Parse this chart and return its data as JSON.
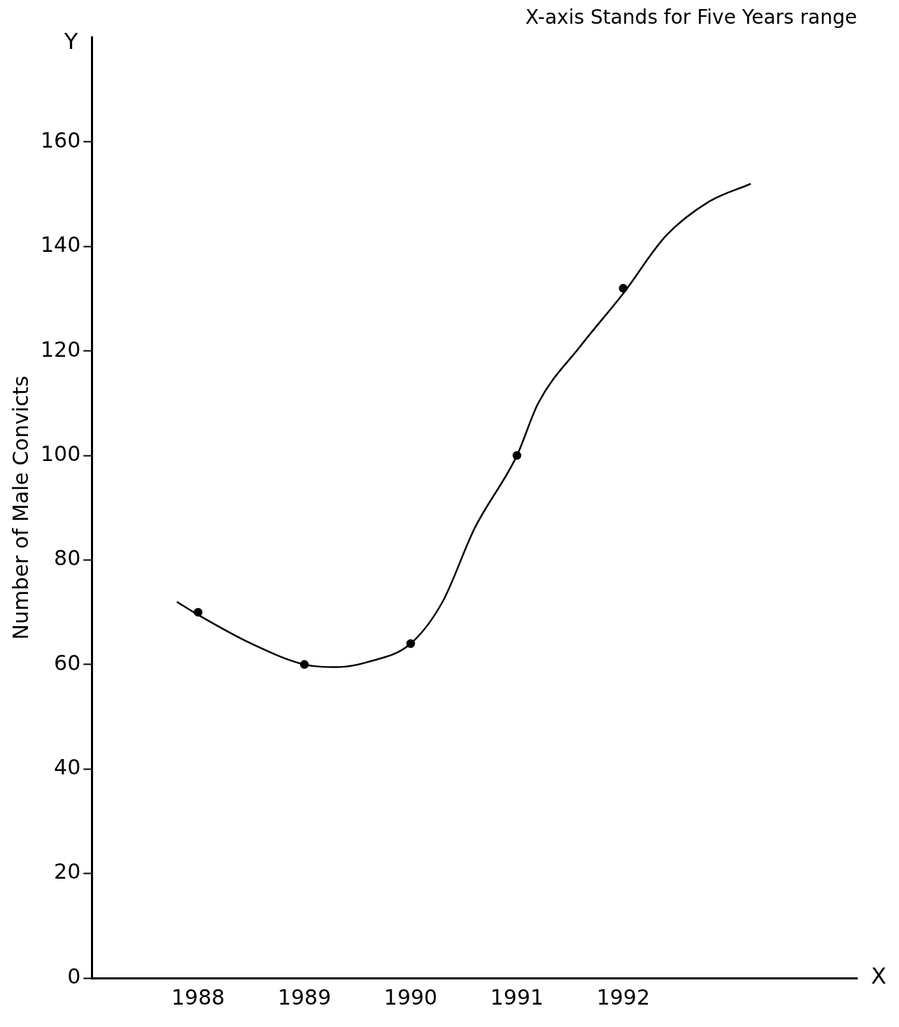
{
  "chart_data": {
    "type": "scatter",
    "title": "X-axis Stands for Five Years range",
    "ylabel": "Number of Male Convicts",
    "xlim": [
      1987,
      1994.2
    ],
    "xticks": [
      1988,
      1989,
      1990,
      1991,
      1992
    ],
    "ylim": [
      0,
      180
    ],
    "yticks": [
      0,
      20,
      40,
      60,
      80,
      100,
      120,
      140,
      160
    ],
    "grid": false,
    "legend": false,
    "annotations": [
      "Y",
      "X"
    ],
    "series": [
      {
        "type": "scatter",
        "color": "#000000",
        "marker": "circle",
        "x": [
          1988,
          1989,
          1990,
          1991,
          1992
        ],
        "values": [
          70,
          60,
          64,
          100,
          132
        ]
      },
      {
        "type": "line",
        "color": "#000000",
        "marker": "none",
        "line_style": "solid",
        "x": [
          1987.8,
          1988,
          1988.5,
          1989,
          1989.3,
          1989.6,
          1990,
          1990.3,
          1990.6,
          1991,
          1991.2,
          1991.6,
          1992,
          1992.4,
          1992.8,
          1993.2
        ],
        "values": [
          72,
          69.5,
          64,
          60,
          59.5,
          60.5,
          64,
          72,
          86,
          100,
          110,
          121,
          131,
          142,
          148.5,
          152
        ]
      }
    ]
  }
}
